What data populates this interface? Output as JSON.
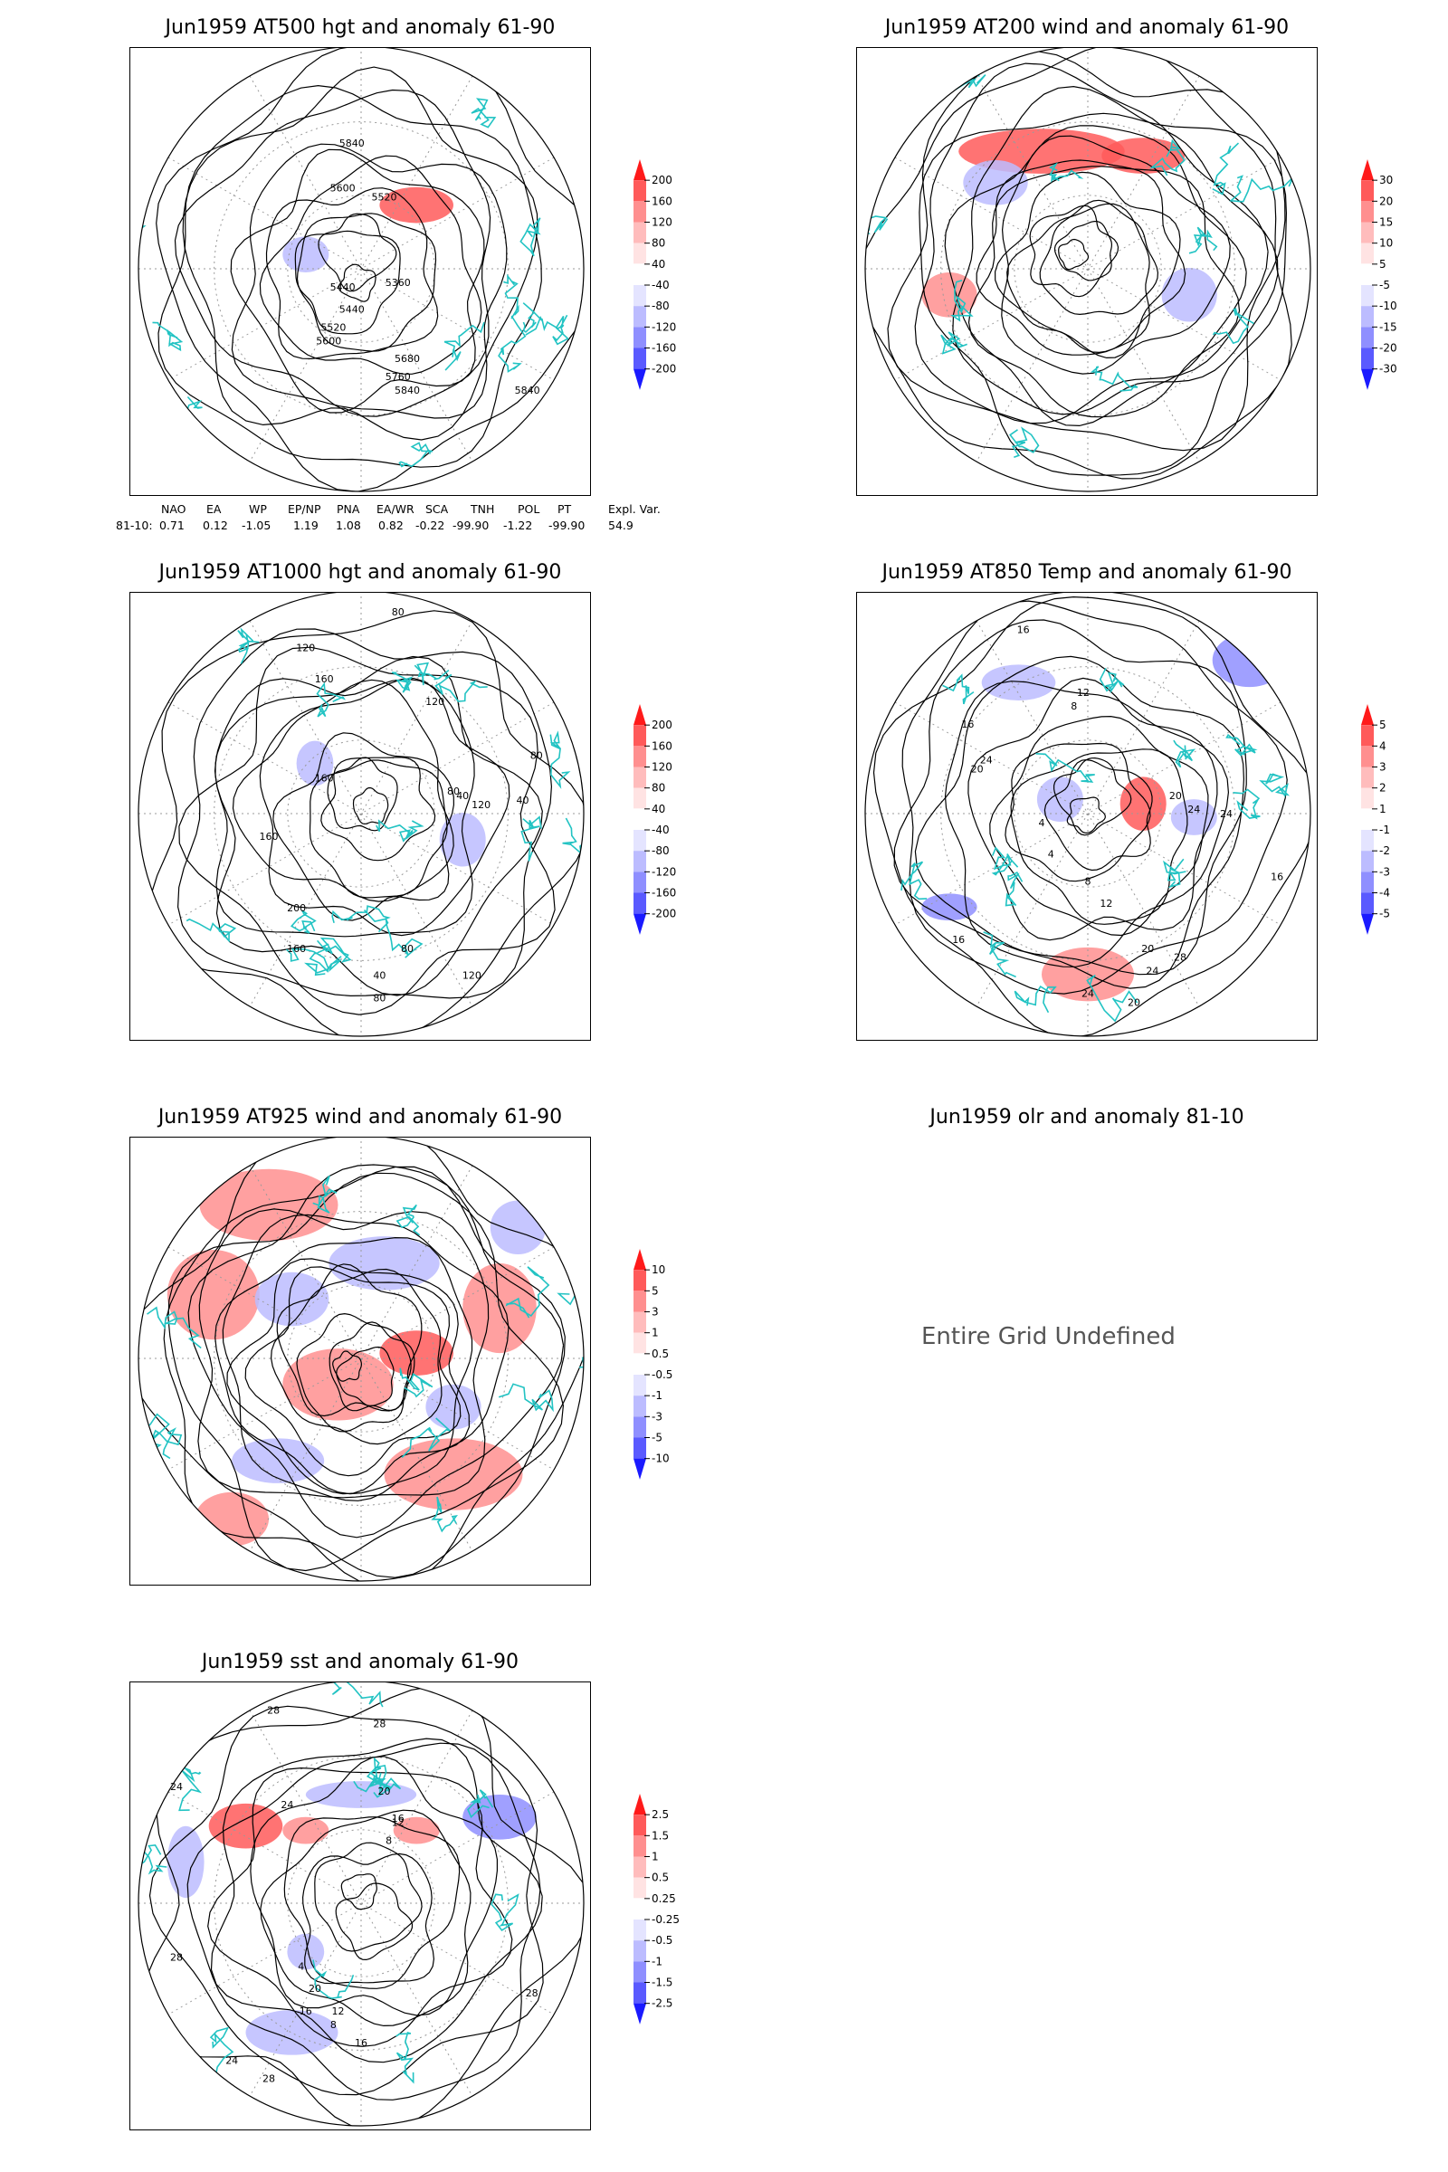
{
  "colors": {
    "coast": "#22c3c3",
    "contour": "#000000",
    "grid": "#9a9a9a"
  },
  "panels": [
    {
      "id": "p1",
      "title": "Jun1959 AT500 hgt and anomaly 61-90",
      "contour_labels": [
        "5840",
        "5600",
        "5520",
        "5360",
        "5440",
        "5440",
        "5520",
        "5600",
        "5680",
        "5760",
        "5840",
        "5840"
      ],
      "colorbar": {
        "labels": [
          "200",
          "160",
          "120",
          "80",
          "40",
          "-40",
          "-80",
          "-120",
          "-160",
          "-200"
        ],
        "colors": [
          "#ff1a1a",
          "#ff5a5a",
          "#ff8f8f",
          "#ffbcbc",
          "#ffe3e3",
          "#ffffff",
          "#e4e4ff",
          "#bcbcff",
          "#8f8fff",
          "#5a5aff",
          "#1a1aff"
        ]
      }
    },
    {
      "id": "p2",
      "title": "Jun1959 AT200 wind and anomaly 61-90",
      "contour_labels": [],
      "colorbar": {
        "labels": [
          "30",
          "20",
          "15",
          "10",
          "5",
          "-5",
          "-10",
          "-15",
          "-20",
          "-30"
        ],
        "colors": [
          "#ff1a1a",
          "#ff5a5a",
          "#ff8f8f",
          "#ffbcbc",
          "#ffe3e3",
          "#ffffff",
          "#e4e4ff",
          "#bcbcff",
          "#8f8fff",
          "#5a5aff",
          "#1a1aff"
        ]
      }
    },
    {
      "id": "p3",
      "title": "Jun1959 AT1000 hgt and anomaly 61-90",
      "contour_labels": [
        "80",
        "120",
        "160",
        "120",
        "80",
        "160",
        "80",
        "40",
        "40",
        "120",
        "160",
        "200",
        "160",
        "80",
        "40",
        "120",
        "80"
      ],
      "colorbar": {
        "labels": [
          "200",
          "160",
          "120",
          "80",
          "40",
          "-40",
          "-80",
          "-120",
          "-160",
          "-200"
        ],
        "colors": [
          "#ff1a1a",
          "#ff5a5a",
          "#ff8f8f",
          "#ffbcbc",
          "#ffe3e3",
          "#ffffff",
          "#e4e4ff",
          "#bcbcff",
          "#8f8fff",
          "#5a5aff",
          "#1a1aff"
        ]
      }
    },
    {
      "id": "p4",
      "title": "Jun1959 AT850 Temp and anomaly 61-90",
      "contour_labels": [
        "16",
        "12",
        "8",
        "16",
        "24",
        "20",
        "4",
        "4",
        "8",
        "12",
        "20",
        "24",
        "24",
        "16",
        "16",
        "20",
        "24",
        "28",
        "24",
        "20"
      ],
      "colorbar": {
        "labels": [
          "5",
          "4",
          "3",
          "2",
          "1",
          "-1",
          "-2",
          "-3",
          "-4",
          "-5"
        ],
        "colors": [
          "#ff1a1a",
          "#ff5a5a",
          "#ff8f8f",
          "#ffbcbc",
          "#ffe3e3",
          "#ffffff",
          "#e4e4ff",
          "#bcbcff",
          "#8f8fff",
          "#5a5aff",
          "#1a1aff"
        ]
      }
    },
    {
      "id": "p5",
      "title": "Jun1959 AT925 wind and anomaly 61-90",
      "contour_labels": [],
      "colorbar": {
        "labels": [
          "10",
          "5",
          "3",
          "1",
          "0.5",
          "-0.5",
          "-1",
          "-3",
          "-5",
          "-10"
        ],
        "colors": [
          "#ff1a1a",
          "#ff5a5a",
          "#ff8f8f",
          "#ffbcbc",
          "#ffe3e3",
          "#ffffff",
          "#e4e4ff",
          "#bcbcff",
          "#8f8fff",
          "#5a5aff",
          "#1a1aff"
        ]
      }
    },
    {
      "id": "p6",
      "title": "Jun1959 olr and anomaly 81-10",
      "message": "Entire Grid Undefined"
    },
    {
      "id": "p7",
      "title": "Jun1959 sst and anomaly 61-90",
      "contour_labels": [
        "28",
        "28",
        "24",
        "24",
        "20",
        "16",
        "12",
        "8",
        "28",
        "20",
        "16",
        "12",
        "8",
        "4",
        "28",
        "16",
        "24",
        "28"
      ],
      "colorbar": {
        "labels": [
          "2.5",
          "1.5",
          "1",
          "0.5",
          "0.25",
          "-0.25",
          "-0.5",
          "-1",
          "-1.5",
          "-2.5"
        ],
        "colors": [
          "#ff1a1a",
          "#ff5a5a",
          "#ff8f8f",
          "#ffbcbc",
          "#ffe3e3",
          "#ffffff",
          "#e4e4ff",
          "#bcbcff",
          "#8f8fff",
          "#5a5aff",
          "#1a1aff"
        ]
      }
    }
  ],
  "teleconnection": {
    "headers": [
      "NAO",
      "EA",
      "WP",
      "EP/NP",
      "PNA",
      "EA/WR",
      "SCA",
      "TNH",
      "POL",
      "PT",
      "Expl. Var."
    ],
    "row_label": "81-10:",
    "values": [
      "0.71",
      "0.12",
      "-1.05",
      "1.19",
      "1.08",
      "0.82",
      "-0.22",
      "-99.90",
      "-1.22",
      "-99.90",
      "54.9"
    ]
  }
}
